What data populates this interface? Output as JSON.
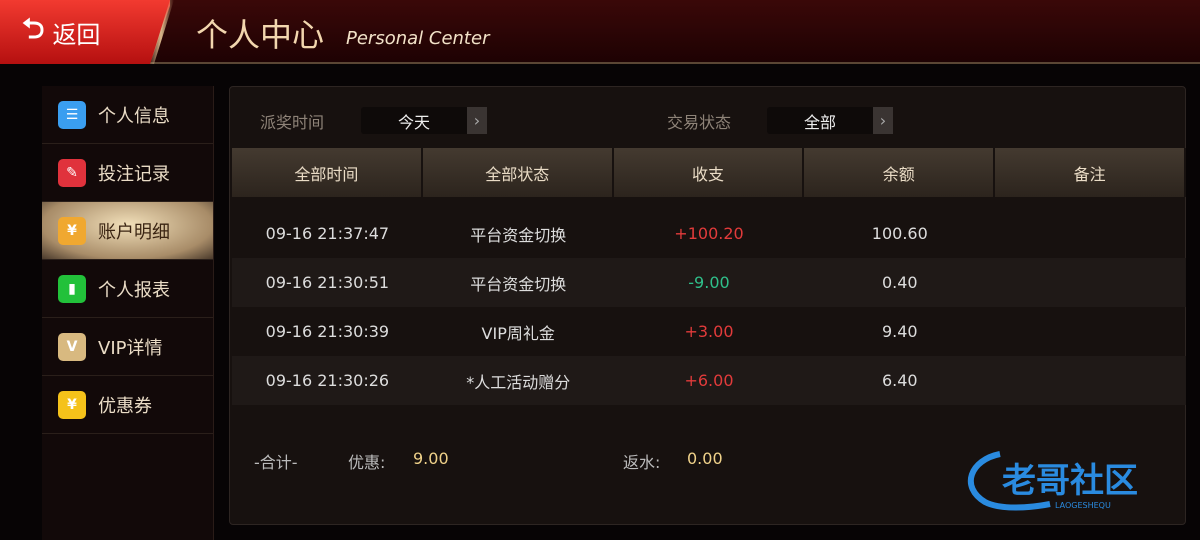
{
  "header": {
    "back_label": "返回",
    "back_icon": "return-arrow-icon",
    "title": "个人中心",
    "title_en": "Personal Center"
  },
  "sidebar": {
    "items": [
      {
        "label": "个人信息",
        "icon": "id-card-icon",
        "color": "#3a9ef0"
      },
      {
        "label": "投注记录",
        "icon": "document-pen-icon",
        "color": "#e0323c"
      },
      {
        "label": "账户明细",
        "icon": "yuan-bag-icon",
        "color": "#f0a830",
        "active": true
      },
      {
        "label": "个人报表",
        "icon": "bar-chart-icon",
        "color": "#22c13a"
      },
      {
        "label": "VIP详情",
        "icon": "crown-icon",
        "color": "#d8b980"
      },
      {
        "label": "优惠券",
        "icon": "yuan-ticket-icon",
        "color": "#f5c21a"
      }
    ]
  },
  "filters": {
    "time_label": "派奖时间",
    "time_value": "今天",
    "status_label": "交易状态",
    "status_value": "全部"
  },
  "table": {
    "headers": [
      "全部时间",
      "全部状态",
      "收支",
      "余额",
      "备注"
    ],
    "rows": [
      {
        "time": "09-16 21:37:47",
        "type": "平台资金切换",
        "amount": "+100.20",
        "balance": "100.60",
        "note": ""
      },
      {
        "time": "09-16 21:30:51",
        "type": "平台资金切换",
        "amount": "-9.00",
        "balance": "0.40",
        "note": ""
      },
      {
        "time": "09-16 21:30:39",
        "type": "VIP周礼金",
        "amount": "+3.00",
        "balance": "9.40",
        "note": ""
      },
      {
        "time": "09-16 21:30:26",
        "type": "*人工活动赠分",
        "amount": "+6.00",
        "balance": "6.40",
        "note": ""
      }
    ]
  },
  "summary": {
    "total_label": "-合计-",
    "discount_label": "优惠:",
    "discount_value": "9.00",
    "rebate_label": "返水:",
    "rebate_value": "0.00"
  },
  "watermark": {
    "text": "老哥社区",
    "sub": "LAOGESHEQU"
  },
  "colors": {
    "positive": "#e23b3b",
    "negative": "#2fbf8a",
    "accent": "#f0d28a"
  }
}
